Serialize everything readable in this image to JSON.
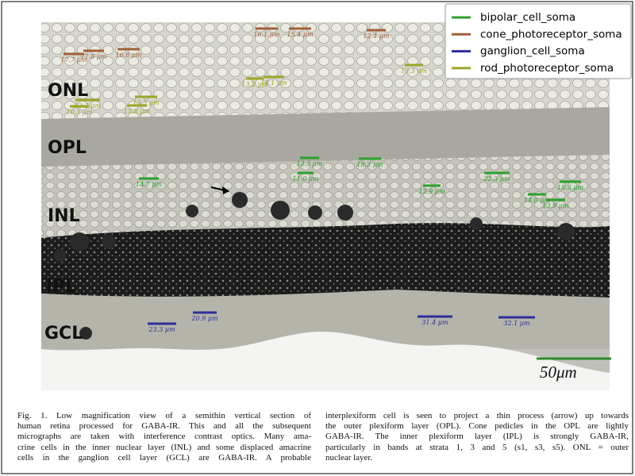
{
  "figure": {
    "layers": [
      "ONL",
      "OPL",
      "INL",
      "IPL",
      "GCL"
    ],
    "scale_bar": "50μm",
    "legend": [
      {
        "name": "bipolar_cell_soma",
        "color": "#2ca02c",
        "measurements": [
          "14.7 μm",
          "13.3 μm",
          "11.0 μm",
          "18.3 μm",
          "13.9 μm",
          "22.3 μm",
          "18.3 μm",
          "14.0 μm",
          "13.9 μm"
        ]
      },
      {
        "name": "cone_photoreceptor_soma",
        "color": "#a0603a",
        "measurements": [
          "17.7 μm",
          "17.8 μm",
          "16.8 μm",
          "16.1 μm",
          "15.4 μm",
          "12.4 μm"
        ]
      },
      {
        "name": "ganglion_cell_soma",
        "color": "#2e2e9a",
        "measurements": [
          "23.3 μm",
          "20.9 μm",
          "31.4 μm",
          "32.1 μm"
        ]
      },
      {
        "name": "rod_photoreceptor_soma",
        "color": "#9ea52a",
        "measurements": [
          "13.3 μm",
          "10.3 μm",
          "13.8 μm",
          "13.3 μm",
          "13.2 μm",
          "14.1 μm",
          "13.3 μm"
        ]
      }
    ],
    "caption": {
      "left": [
        "Fig. 1.  Low magnification view of a semithin vertical section of",
        "human retina processed for GABA-IR. This and all the subsequent",
        "micrographs are taken with interference contrast optics. Many ama-",
        "crine cells in the inner nuclear layer (INL) and some displaced amacrine",
        "cells in the ganglion cell layer (GCL) are GABA-IR. A probable"
      ],
      "right": [
        "interplexiform cell is seen to project a thin process (arrow) up towards",
        "the outer plexiform layer (OPL). Cone pedicles in the OPL are lightly",
        "GABA-IR. The inner plexiform layer (IPL) is strongly GABA-IR,",
        "particularly in bands at strata 1, 3 and 5 (s1, s3, s5). ONL = outer",
        "nuclear layer."
      ]
    }
  }
}
